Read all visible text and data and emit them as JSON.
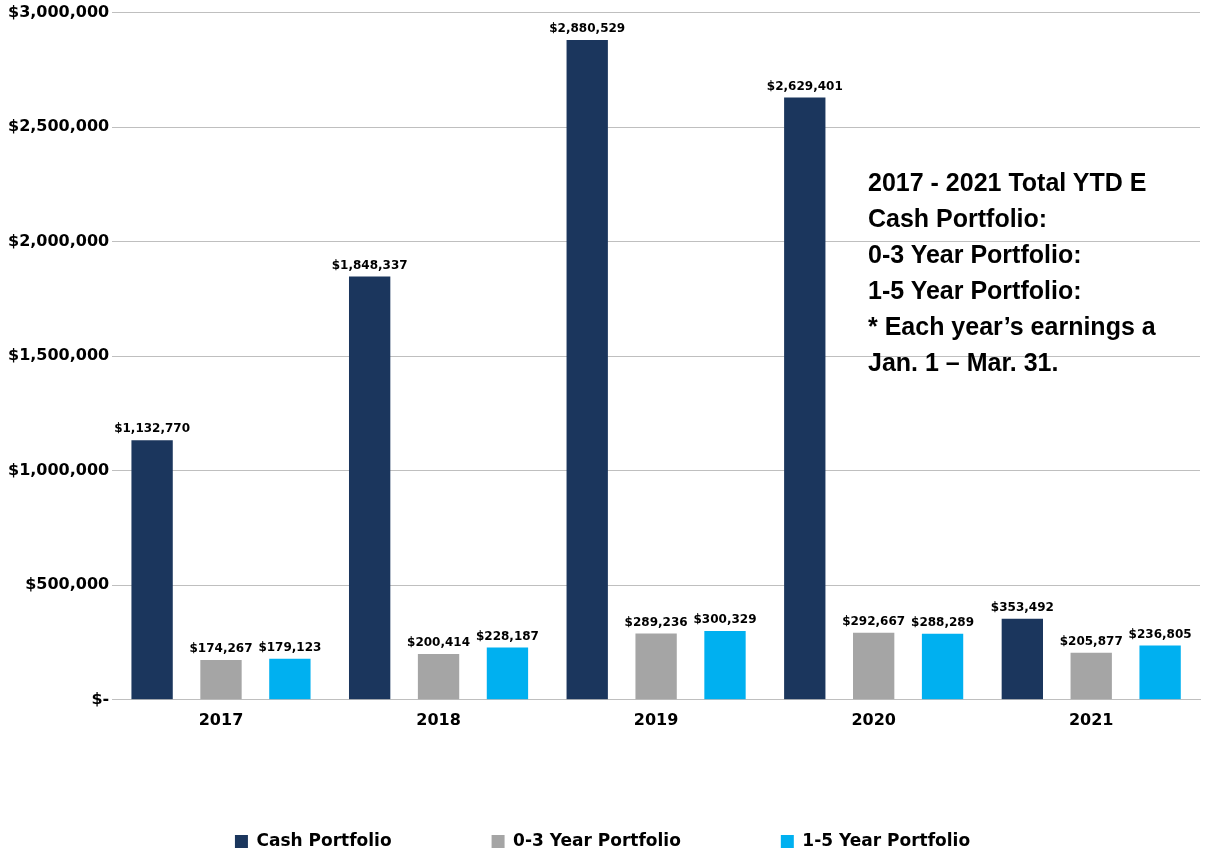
{
  "chart_data": {
    "type": "bar",
    "categories": [
      "2017",
      "2018",
      "2019",
      "2020",
      "2021"
    ],
    "series": [
      {
        "name": "Cash Portfolio",
        "color": "#1b365d",
        "values": [
          1132770,
          1848337,
          2880529,
          2629401,
          353492
        ],
        "value_labels": [
          "$1,132,770",
          "$1,848,337",
          "$2,880,529",
          "$2,629,401",
          "$353,492"
        ]
      },
      {
        "name": "0-3 Year Portfolio",
        "color": "#a5a5a5",
        "values": [
          174267,
          200414,
          289236,
          292667,
          205877
        ],
        "value_labels": [
          "$174,267",
          "$200,414",
          "$289,236",
          "$292,667",
          "$205,877"
        ]
      },
      {
        "name": "1-5 Year Portfolio",
        "color": "#00b0f0",
        "values": [
          179123,
          228187,
          300329,
          288289,
          236805
        ],
        "value_labels": [
          "$179,123",
          "$228,187",
          "$300,329",
          "$288,289",
          "$236,805"
        ]
      }
    ],
    "ylim": [
      0,
      3000000
    ],
    "yticks": [
      {
        "value": 0,
        "label": "$-"
      },
      {
        "value": 500000,
        "label": "$500,000"
      },
      {
        "value": 1000000,
        "label": "$1,000,000"
      },
      {
        "value": 1500000,
        "label": "$1,500,000"
      },
      {
        "value": 2000000,
        "label": "$2,000,000"
      },
      {
        "value": 2500000,
        "label": "$2,500,000"
      },
      {
        "value": 3000000,
        "label": "$3,000,000"
      }
    ],
    "grid": "y",
    "legend": "bottom",
    "annotations": [
      "2017 - 2021 Total YTD E",
      "Cash Portfolio:",
      "0-3 Year Portfolio:",
      "1-5 Year Portfolio:",
      "* Each year’s earnings a",
      "Jan. 1 – Mar. 31."
    ]
  }
}
